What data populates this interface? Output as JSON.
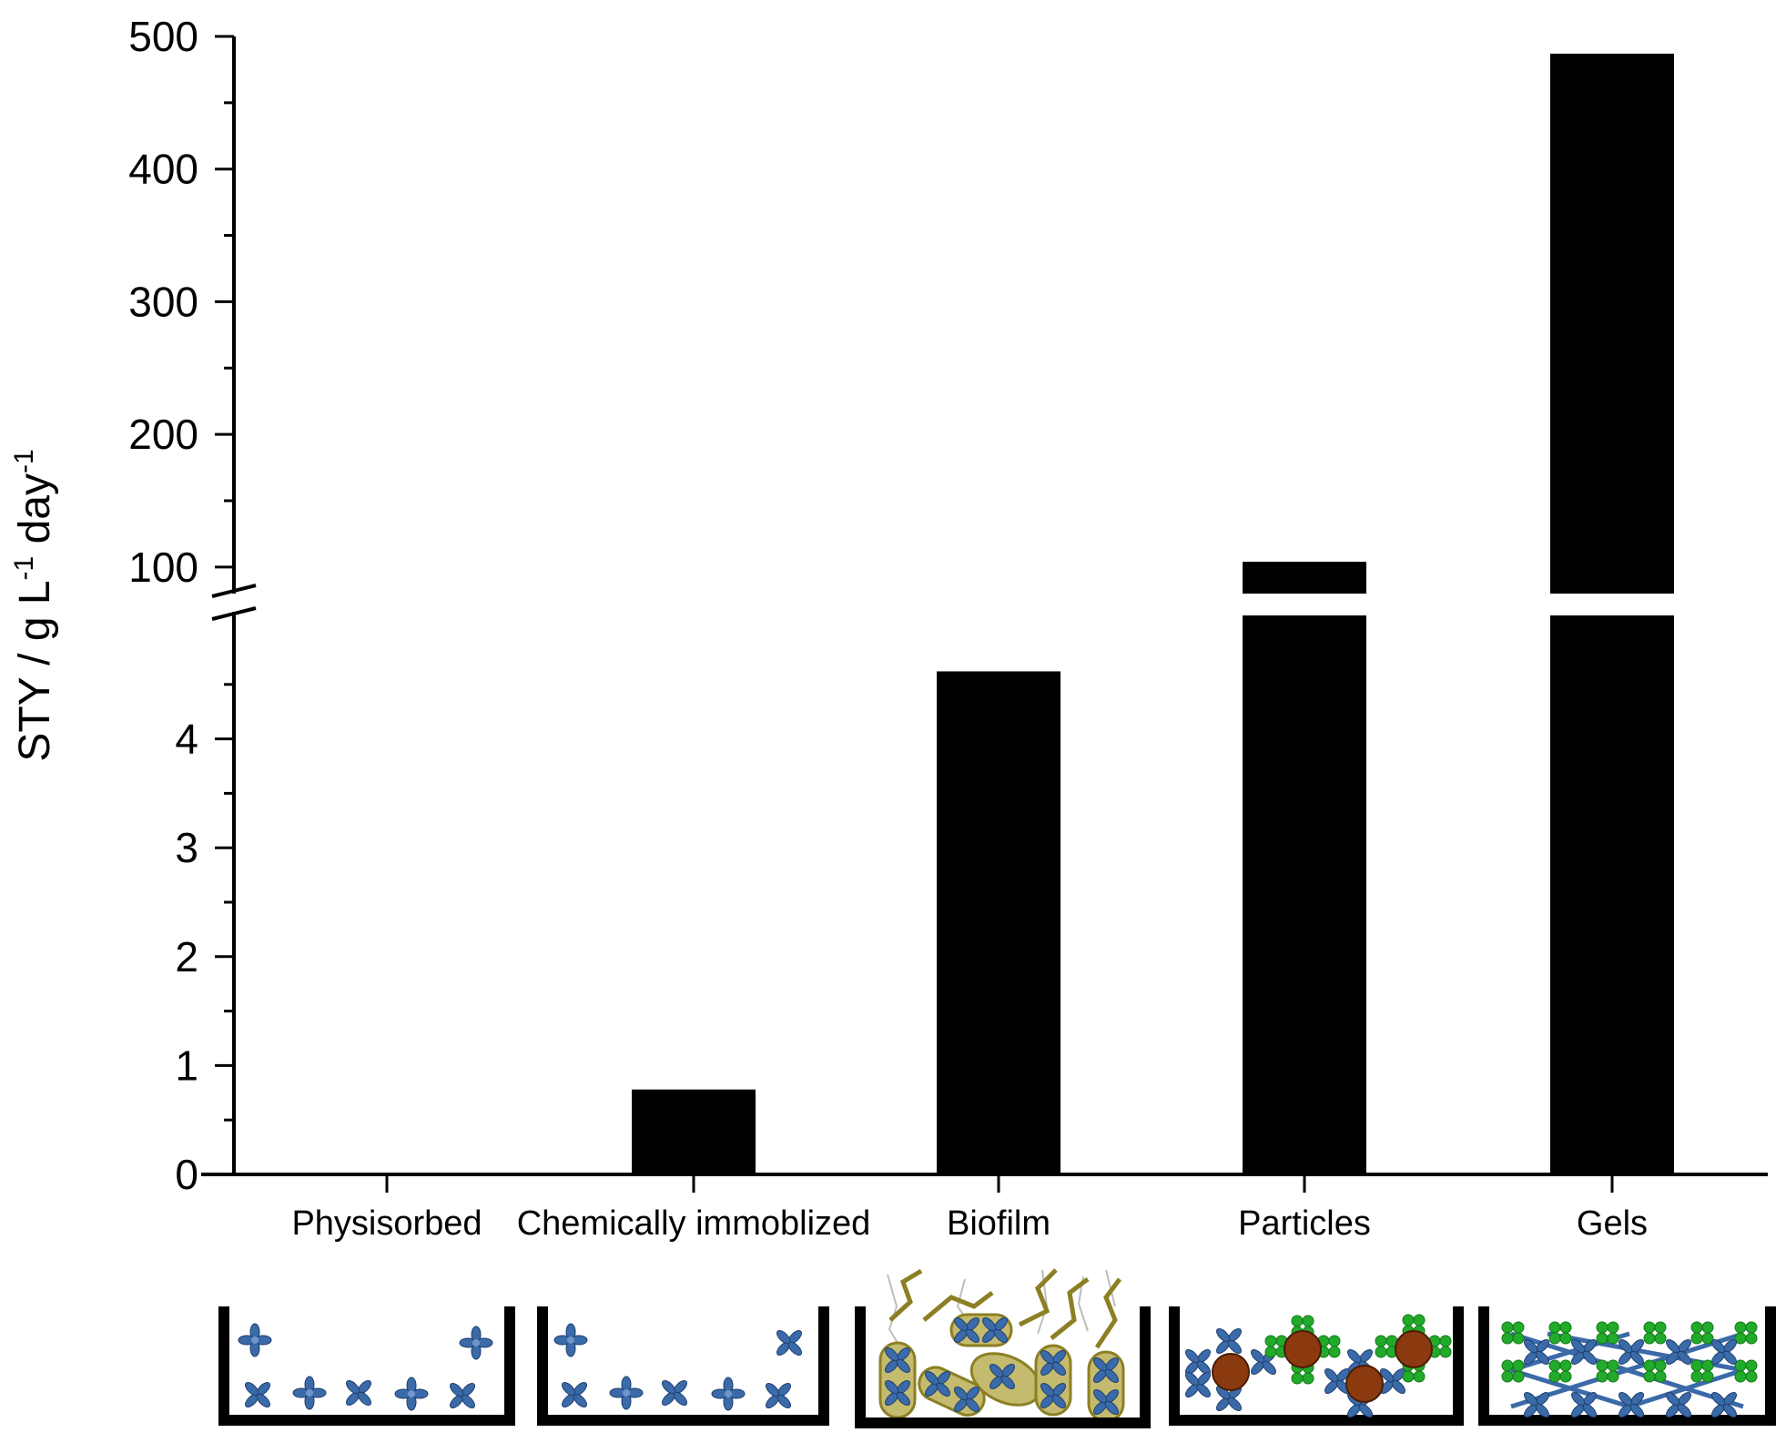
{
  "chart_data": {
    "type": "bar",
    "categories": [
      "Physisorbed",
      "Chemically immoblized",
      "Biofilm",
      "Particles",
      "Gels"
    ],
    "values": [
      0,
      0.78,
      4.62,
      104,
      487
    ],
    "ylabel": {
      "main": "STY  /  g L",
      "sup1": "-1",
      "mid": " day",
      "sup2": "-1"
    },
    "axis_break": true,
    "y_lower_range": [
      0,
      5
    ],
    "y_upper_range": [
      80,
      500
    ],
    "y_lower_ticks": [
      "0",
      "1",
      "2",
      "3",
      "4"
    ],
    "y_upper_ticks": [
      "100",
      "200",
      "300",
      "400",
      "500"
    ],
    "y_lower_tick_values": [
      0,
      1,
      2,
      3,
      4
    ],
    "y_upper_tick_values": [
      100,
      200,
      300,
      400,
      500
    ],
    "bar_color": "#000000",
    "schematics": [
      "physisorbed-enzymes-icon",
      "chemically-immobilized-enzymes-icon",
      "biofilm-cells-icon",
      "enzyme-particles-icon",
      "enzyme-gel-network-icon"
    ],
    "colors": {
      "enzyme_blue": "#3b6aa8",
      "enzyme_green": "#22aa2a",
      "particle_brown": "#8b3a10",
      "biofilm_olive": "#a59a3c"
    }
  }
}
